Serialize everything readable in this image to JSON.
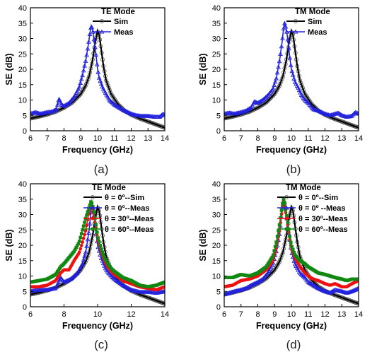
{
  "colors": {
    "sim": "#000000",
    "meas": "#2222dd",
    "meas30": "#ee1111",
    "meas60": "#118811"
  },
  "chart_data": [
    {
      "type": "line",
      "caption": "(a)",
      "legend_title": "TE Mode",
      "xlabel": "Frequency (GHz)",
      "ylabel": "SE (dB)",
      "xlim": [
        6,
        14
      ],
      "ylim": [
        0,
        40
      ],
      "xticks": [
        6,
        7,
        8,
        9,
        10,
        11,
        12,
        13,
        14
      ],
      "yticks": [
        0,
        5,
        10,
        15,
        20,
        25,
        30,
        35,
        40
      ],
      "legend_position": "top-right",
      "series": [
        {
          "name": "Sim",
          "color": "#000000",
          "marker": "open-circle",
          "x": [
            6.0,
            6.5,
            7.0,
            7.5,
            8.0,
            8.5,
            9.0,
            9.3,
            9.5,
            9.7,
            9.85,
            10.0,
            10.1,
            10.2,
            10.35,
            10.5,
            10.8,
            11.2,
            11.6,
            12.0,
            12.5,
            13.0,
            13.5,
            14.0
          ],
          "y": [
            4.0,
            4.6,
            5.3,
            6.2,
            7.5,
            9.2,
            12.0,
            14.8,
            17.8,
            23.0,
            28.5,
            32.5,
            31.0,
            27.0,
            21.0,
            16.5,
            12.0,
            8.7,
            6.6,
            5.2,
            4.0,
            3.0,
            2.0,
            1.0
          ]
        },
        {
          "name": "Meas",
          "color": "#2222dd",
          "marker": "triangle",
          "x": [
            6.0,
            6.3,
            6.6,
            7.0,
            7.3,
            7.55,
            7.7,
            7.85,
            8.0,
            8.3,
            8.6,
            8.9,
            9.1,
            9.3,
            9.45,
            9.55,
            9.62,
            9.7,
            9.8,
            9.9,
            10.0,
            10.1,
            10.3,
            10.5,
            10.7,
            11.0,
            11.3,
            11.6,
            12.0,
            12.3,
            12.6,
            13.0,
            13.4,
            13.7,
            13.9,
            14.0
          ],
          "y": [
            5.5,
            6.0,
            5.5,
            6.0,
            6.2,
            7.0,
            10.5,
            8.5,
            8.0,
            9.0,
            11.0,
            14.0,
            18.0,
            23.0,
            28.0,
            32.0,
            34.2,
            33.0,
            29.0,
            25.0,
            20.0,
            17.0,
            14.0,
            12.0,
            10.0,
            8.5,
            7.5,
            6.5,
            5.5,
            5.0,
            4.8,
            4.8,
            4.5,
            4.5,
            5.5,
            5.0
          ]
        }
      ]
    },
    {
      "type": "line",
      "caption": "(b)",
      "legend_title": "TM Mode",
      "xlabel": "Frequency (GHz)",
      "ylabel": "SE (dB)",
      "xlim": [
        6,
        14
      ],
      "ylim": [
        0,
        40
      ],
      "xticks": [
        6,
        7,
        8,
        9,
        10,
        11,
        12,
        13,
        14
      ],
      "yticks": [
        0,
        5,
        10,
        15,
        20,
        25,
        30,
        35,
        40
      ],
      "legend_position": "top-right",
      "series": [
        {
          "name": "Sim",
          "color": "#000000",
          "marker": "open-circle",
          "x": [
            6.0,
            6.5,
            7.0,
            7.5,
            8.0,
            8.5,
            9.0,
            9.3,
            9.5,
            9.7,
            9.85,
            10.0,
            10.1,
            10.2,
            10.35,
            10.5,
            10.8,
            11.2,
            11.6,
            12.0,
            12.5,
            13.0,
            13.5,
            14.0
          ],
          "y": [
            4.0,
            4.6,
            5.3,
            6.2,
            7.5,
            9.2,
            12.0,
            14.8,
            17.8,
            23.0,
            28.5,
            32.5,
            31.0,
            27.0,
            21.0,
            16.5,
            12.0,
            8.7,
            6.6,
            5.2,
            4.0,
            3.0,
            2.0,
            1.0
          ]
        },
        {
          "name": "Meas",
          "color": "#2222dd",
          "marker": "triangle",
          "x": [
            6.0,
            6.3,
            6.6,
            7.0,
            7.3,
            7.6,
            7.8,
            8.0,
            8.3,
            8.6,
            8.9,
            9.1,
            9.3,
            9.45,
            9.55,
            9.6,
            9.7,
            9.8,
            9.9,
            10.0,
            10.2,
            10.4,
            10.6,
            10.8,
            11.0,
            11.3,
            11.6,
            12.0,
            12.3,
            12.6,
            12.8,
            13.0,
            13.3,
            13.6,
            13.8,
            14.0
          ],
          "y": [
            5.5,
            5.8,
            5.5,
            6.0,
            6.5,
            7.5,
            9.5,
            9.0,
            10.0,
            11.5,
            13.5,
            17.0,
            23.0,
            29.0,
            34.0,
            35.0,
            33.0,
            29.0,
            24.0,
            20.0,
            16.0,
            14.0,
            11.5,
            10.0,
            9.0,
            7.0,
            6.5,
            5.5,
            5.0,
            5.5,
            5.8,
            5.0,
            4.5,
            4.8,
            6.0,
            5.5
          ]
        }
      ]
    },
    {
      "type": "line",
      "caption": "(c)",
      "legend_title": "TE Mode",
      "xlabel": "Frequency (GHz)",
      "ylabel": "SE (dB)",
      "xlim": [
        6,
        14
      ],
      "ylim": [
        0,
        40
      ],
      "xticks": [
        6,
        8,
        10,
        12,
        14
      ],
      "yticks": [
        0,
        5,
        10,
        15,
        20,
        25,
        30,
        35,
        40
      ],
      "legend_position": "top-right",
      "series": [
        {
          "name": "θ = 0º--Sim",
          "color": "#000000",
          "marker": "open-circle",
          "x": [
            6.0,
            6.5,
            7.0,
            7.5,
            8.0,
            8.5,
            9.0,
            9.3,
            9.5,
            9.7,
            9.85,
            10.0,
            10.1,
            10.2,
            10.35,
            10.5,
            10.8,
            11.2,
            11.6,
            12.0,
            12.5,
            13.0,
            13.5,
            14.0
          ],
          "y": [
            4.0,
            4.6,
            5.3,
            6.2,
            7.5,
            9.2,
            12.0,
            14.8,
            17.8,
            23.0,
            28.5,
            32.5,
            31.0,
            27.0,
            21.0,
            16.5,
            12.0,
            8.7,
            6.6,
            5.2,
            4.0,
            3.0,
            2.0,
            1.0
          ]
        },
        {
          "name": "θ = 0º--Meas",
          "color": "#2222dd",
          "marker": "triangle",
          "x": [
            6.0,
            6.5,
            7.0,
            7.5,
            7.8,
            8.0,
            8.4,
            8.8,
            9.1,
            9.3,
            9.5,
            9.62,
            9.7,
            9.8,
            9.9,
            10.0,
            10.2,
            10.5,
            10.8,
            11.0,
            11.5,
            12.0,
            12.5,
            13.0,
            13.5,
            14.0
          ],
          "y": [
            5.0,
            5.5,
            5.5,
            6.0,
            9.5,
            8.0,
            9.0,
            11.0,
            14.0,
            18.0,
            25.0,
            32.0,
            33.0,
            29.0,
            24.0,
            20.0,
            16.0,
            12.0,
            10.0,
            9.0,
            7.0,
            5.5,
            4.8,
            4.8,
            4.5,
            5.0
          ]
        },
        {
          "name": "θ = 30º--Meas",
          "color": "#ee1111",
          "marker": "circle",
          "x": [
            6.0,
            6.5,
            7.0,
            7.5,
            7.8,
            8.0,
            8.3,
            8.6,
            8.9,
            9.1,
            9.3,
            9.5,
            9.62,
            9.75,
            9.9,
            10.0,
            10.2,
            10.4,
            10.6,
            10.8,
            11.0,
            11.5,
            12.0,
            12.5,
            13.0,
            13.5,
            14.0
          ],
          "y": [
            6.5,
            6.5,
            7.0,
            8.5,
            11.0,
            12.0,
            12.0,
            15.0,
            17.5,
            21.0,
            25.0,
            31.0,
            33.5,
            30.0,
            26.0,
            22.0,
            18.0,
            15.0,
            13.0,
            11.5,
            10.5,
            8.5,
            7.5,
            6.5,
            6.0,
            5.5,
            6.5
          ]
        },
        {
          "name": "θ = 60º--Meas",
          "color": "#118811",
          "marker": "square",
          "x": [
            6.0,
            6.5,
            7.0,
            7.5,
            7.8,
            8.0,
            8.3,
            8.6,
            8.9,
            9.1,
            9.3,
            9.5,
            9.62,
            9.75,
            9.9,
            10.0,
            10.2,
            10.4,
            10.6,
            10.8,
            11.0,
            11.5,
            12.0,
            12.5,
            13.0,
            13.5,
            14.0
          ],
          "y": [
            8.0,
            8.5,
            9.0,
            10.5,
            13.0,
            14.0,
            16.0,
            18.0,
            21.0,
            25.0,
            29.0,
            32.5,
            34.5,
            32.0,
            27.0,
            23.0,
            19.0,
            16.0,
            14.0,
            12.5,
            11.5,
            9.5,
            8.5,
            7.0,
            6.5,
            7.0,
            8.0
          ]
        }
      ]
    },
    {
      "type": "line",
      "caption": "(d)",
      "legend_title": "TM Mode",
      "xlabel": "Frequency (GHz)",
      "ylabel": "SE (dB)",
      "xlim": [
        6,
        14
      ],
      "ylim": [
        0,
        40
      ],
      "xticks": [
        6,
        7,
        8,
        9,
        10,
        11,
        12,
        13,
        14
      ],
      "yticks": [
        0,
        5,
        10,
        15,
        20,
        25,
        30,
        35,
        40
      ],
      "legend_position": "top-right",
      "series": [
        {
          "name": "θ = 0º--Sim",
          "color": "#000000",
          "marker": "open-circle",
          "x": [
            6.0,
            6.5,
            7.0,
            7.5,
            8.0,
            8.5,
            9.0,
            9.3,
            9.5,
            9.7,
            9.85,
            10.0,
            10.1,
            10.2,
            10.35,
            10.5,
            10.8,
            11.2,
            11.6,
            12.0,
            12.5,
            13.0,
            13.5,
            14.0
          ],
          "y": [
            4.0,
            4.6,
            5.3,
            6.2,
            7.5,
            9.2,
            12.0,
            14.8,
            17.8,
            23.0,
            28.5,
            32.5,
            31.0,
            27.0,
            21.0,
            16.5,
            12.0,
            8.7,
            6.6,
            5.2,
            4.0,
            3.0,
            2.0,
            1.0
          ]
        },
        {
          "name": "θ = 0º --Meas",
          "color": "#2222dd",
          "marker": "triangle",
          "x": [
            6.0,
            6.3,
            6.6,
            7.0,
            7.3,
            7.6,
            8.0,
            8.3,
            8.6,
            8.9,
            9.1,
            9.3,
            9.45,
            9.55,
            9.65,
            9.75,
            9.9,
            10.0,
            10.2,
            10.5,
            10.8,
            11.0,
            11.3,
            11.6,
            12.0,
            12.3,
            12.6,
            13.0,
            13.3,
            13.6,
            14.0
          ],
          "y": [
            4.0,
            4.5,
            5.0,
            5.5,
            6.0,
            7.0,
            8.0,
            9.0,
            11.0,
            14.0,
            18.0,
            24.0,
            31.0,
            35.0,
            33.0,
            27.0,
            22.0,
            18.0,
            14.0,
            11.0,
            9.5,
            8.0,
            7.0,
            6.0,
            5.0,
            4.5,
            5.5,
            5.0,
            4.5,
            5.0,
            6.0
          ]
        },
        {
          "name": "θ = 30º--Meas",
          "color": "#ee1111",
          "marker": "circle",
          "x": [
            6.0,
            6.5,
            7.0,
            7.5,
            8.0,
            8.5,
            8.9,
            9.1,
            9.3,
            9.45,
            9.55,
            9.65,
            9.8,
            9.9,
            10.0,
            10.2,
            10.5,
            10.8,
            11.0,
            11.3,
            11.6,
            12.0,
            12.3,
            12.6,
            13.0,
            13.3,
            13.6,
            14.0
          ],
          "y": [
            6.5,
            7.0,
            8.5,
            9.0,
            10.0,
            12.0,
            15.0,
            19.0,
            25.0,
            32.0,
            35.0,
            31.0,
            26.0,
            22.0,
            19.0,
            16.0,
            13.0,
            11.0,
            10.0,
            9.0,
            8.5,
            7.5,
            7.0,
            7.5,
            6.5,
            6.5,
            7.5,
            8.5
          ]
        },
        {
          "name": "θ = 60º--Meas",
          "color": "#118811",
          "marker": "square",
          "x": [
            6.0,
            6.5,
            7.0,
            7.5,
            8.0,
            8.5,
            8.9,
            9.1,
            9.3,
            9.45,
            9.55,
            9.65,
            9.8,
            9.9,
            10.0,
            10.2,
            10.5,
            10.8,
            11.0,
            11.3,
            11.6,
            12.0,
            12.3,
            12.6,
            13.0,
            13.3,
            13.6,
            14.0
          ],
          "y": [
            9.5,
            9.5,
            10.5,
            10.0,
            11.0,
            13.0,
            16.5,
            21.0,
            27.0,
            33.0,
            35.5,
            32.0,
            27.0,
            23.0,
            20.0,
            17.0,
            15.0,
            14.0,
            13.0,
            12.0,
            11.0,
            10.5,
            10.0,
            9.5,
            9.0,
            8.5,
            9.0,
            9.0
          ]
        }
      ]
    }
  ]
}
